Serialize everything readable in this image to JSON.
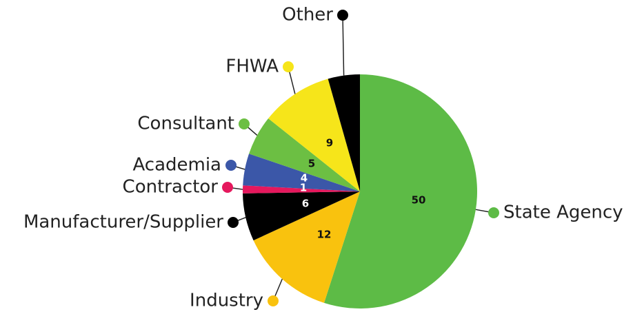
{
  "chart_data": {
    "type": "pie",
    "categories": [
      "State Agency",
      "Industry",
      "Manufacturer/Supplier",
      "Contractor",
      "Academia",
      "Consultant",
      "FHWA",
      "Other"
    ],
    "values": [
      50,
      12,
      6,
      1,
      4,
      5,
      9,
      4
    ],
    "value_labels": [
      "50",
      "12",
      "6",
      "1",
      "4",
      "5",
      "9",
      null
    ],
    "colors": [
      "#5dbb46",
      "#f9c20e",
      "#000000",
      "#e5185d",
      "#3b57a8",
      "#6cbf43",
      "#f6e51a",
      "#000000"
    ],
    "start_angle": 0,
    "direction": "clockwise"
  }
}
